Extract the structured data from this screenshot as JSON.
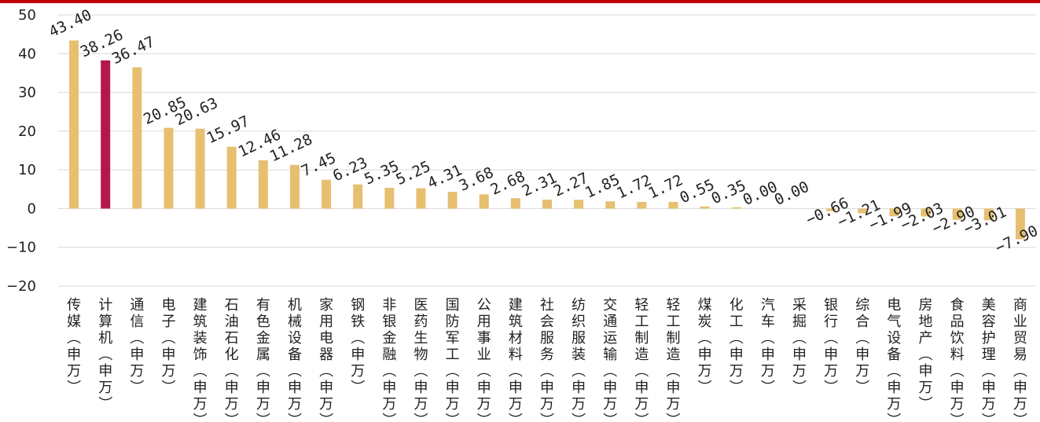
{
  "colors": {
    "top_border": "#c00000",
    "bar": "#e6bf70",
    "highlight_bar": "#b5164b",
    "grid": "#d9d9d9",
    "text": "#222222"
  },
  "chart_data": {
    "type": "bar",
    "title": "",
    "xlabel": "",
    "ylabel": "",
    "ylim": [
      -20,
      50
    ],
    "yticks": [
      50,
      40,
      30,
      20,
      10,
      0,
      -10,
      -20
    ],
    "ytick_labels": [
      "50",
      "40",
      "30",
      "20",
      "10",
      "0",
      "−10",
      "−20"
    ],
    "grid": true,
    "legend": "none",
    "highlight_index": 1,
    "categories": [
      "传媒(申万)",
      "计算机(申万)",
      "通信(申万)",
      "电子(申万)",
      "建筑装饰(申万)",
      "石油石化(申万)",
      "有色金属(申万)",
      "机械设备(申万)",
      "家用电器(申万)",
      "钢铁(申万)",
      "非银金融(申万)",
      "医药生物(申万)",
      "国防军工(申万)",
      "公用事业(申万)",
      "建筑材料(申万)",
      "社会服务(申万)",
      "纺织服装(申万)",
      "交通运输(申万)",
      "轻工制造(申万)",
      "轻工制造(申万)",
      "煤炭(申万)",
      "化工(申万)",
      "汽车(申万)",
      "采掘(申万)",
      "银行(申万)",
      "综合(申万)",
      "电气设备(申万)",
      "房地产(申万)",
      "食品饮料(申万)",
      "美容护理(申万)",
      "商业贸易(申万)"
    ],
    "values": [
      43.4,
      38.26,
      36.47,
      20.85,
      20.63,
      15.97,
      12.46,
      11.28,
      7.45,
      6.23,
      5.35,
      5.25,
      4.31,
      3.68,
      2.68,
      2.31,
      2.27,
      1.85,
      1.72,
      1.72,
      0.55,
      0.35,
      0.0,
      0.0,
      -0.66,
      -1.21,
      -1.99,
      -2.03,
      -2.9,
      -3.01,
      -7.9
    ],
    "data_labels": [
      "43.40",
      "38.26",
      "36.47",
      "20.85",
      "20.63",
      "15.97",
      "12.46",
      "11.28",
      "7.45",
      "6.23",
      "5.35",
      "5.25",
      "4.31",
      "3.68",
      "2.68",
      "2.31",
      "2.27",
      "1.85",
      "1.72",
      "1.72",
      "0.55",
      "0.35",
      "0.00",
      "0.00",
      "−0.66",
      "−1.21",
      "−1.99",
      "−2.03",
      "−2.90",
      "−3.01",
      "−7.90"
    ]
  }
}
